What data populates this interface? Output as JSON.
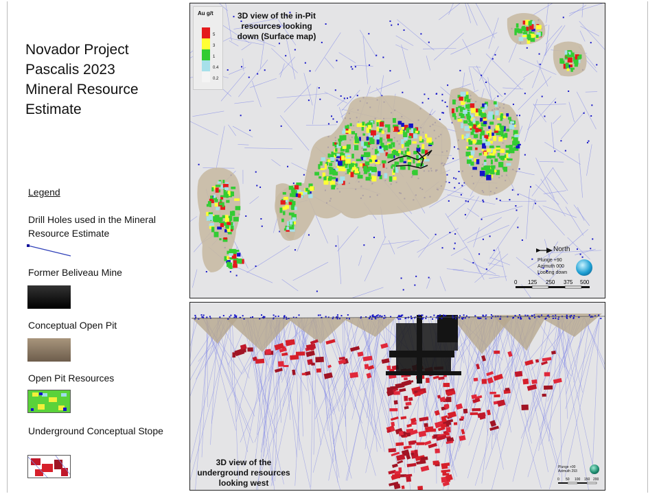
{
  "slide": {
    "title_lines": [
      "Novador  Project",
      "Pascalis 2023",
      "Mineral Resource",
      "Estimate"
    ],
    "legend_heading": "Legend",
    "legend": [
      {
        "label": "Drill Holes used in the Mineral Resource Estimate"
      },
      {
        "label": "Former  Beliveau Mine"
      },
      {
        "label": "Conceptual Open Pit"
      },
      {
        "label": "Open Pit Resources"
      },
      {
        "label": "Underground  Conceptual Stope"
      }
    ]
  },
  "top_map": {
    "title_lines": [
      "3D view of the in-Pit",
      "resources looking",
      "down (Surface map)"
    ],
    "grade_legend": {
      "heading": "Au g/t",
      "classes": [
        {
          "value": "5",
          "color": "#e41a1c"
        },
        {
          "value": "3",
          "color": "#ffff33"
        },
        {
          "value": "1",
          "color": "#33cc33"
        },
        {
          "value": "0.4",
          "color": "#a6e0ea"
        },
        {
          "value": "0.2",
          "color": "#f4f4f4"
        }
      ]
    },
    "north_label": "North",
    "orientation_lines": [
      "Plunge +90",
      "Azimuth 000",
      "Looking down"
    ],
    "scale_ticks": [
      "0",
      "125",
      "250",
      "375",
      "500"
    ]
  },
  "bottom_map": {
    "title_lines": [
      "3D view of the",
      "underground resources",
      "looking west"
    ],
    "orientation_lines": [
      "Plunge +00",
      "Azimuth 293"
    ],
    "scale_ticks": [
      "0",
      "50",
      "100",
      "150",
      "200"
    ]
  },
  "colors": {
    "pit": "#c7b9a0",
    "drill_hole": "#7f86e8",
    "collar": "#1414c8",
    "mine": "#141414",
    "stope": "#d61f2a",
    "background": "#e4e4e6"
  }
}
